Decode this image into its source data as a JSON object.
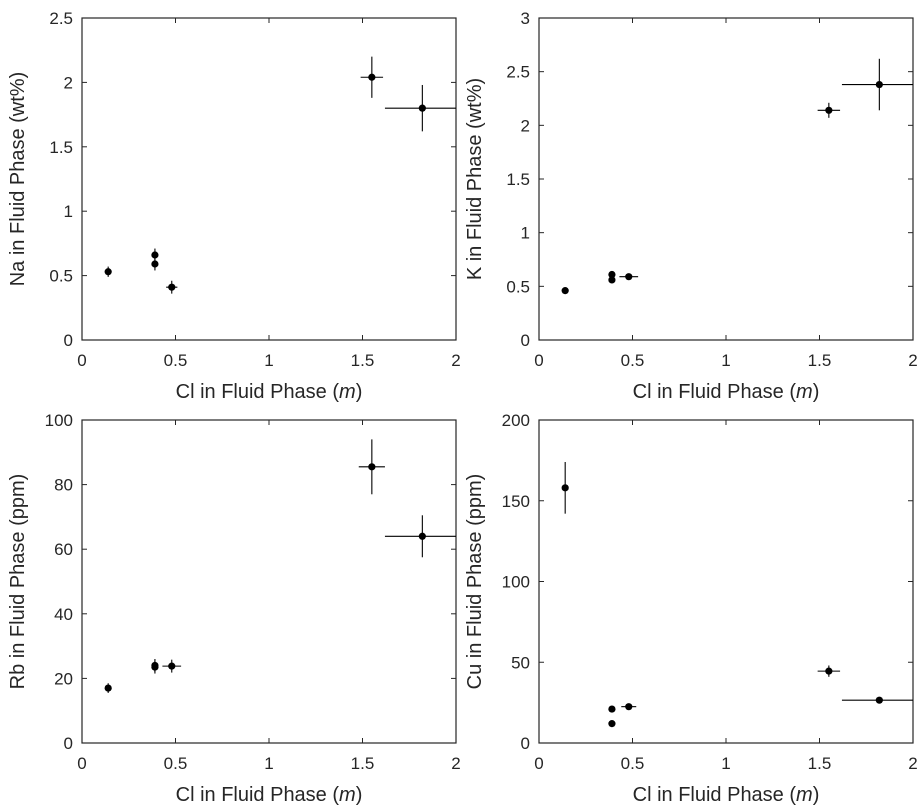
{
  "chart_data": [
    {
      "type": "scatter",
      "xlabel": "Cl in Fluid Phase",
      "xlabel_unit": "m",
      "ylabel": "Na in Fluid Phase (wt%)",
      "xlim": [
        0,
        2
      ],
      "ylim": [
        0,
        2.5
      ],
      "xticks": [
        0,
        0.5,
        1,
        1.5,
        2
      ],
      "xtick_labels": [
        "0",
        "0.5",
        "1",
        "1.5",
        "2"
      ],
      "yticks": [
        0,
        0.5,
        1,
        1.5,
        2,
        2.5
      ],
      "ytick_labels": [
        "0",
        "0.5",
        "1",
        "1.5",
        "2",
        "2.5"
      ],
      "points": [
        {
          "x": 0.14,
          "y": 0.53,
          "xerr": 0,
          "yerr": 0.04
        },
        {
          "x": 0.39,
          "y": 0.59,
          "xerr": 0,
          "yerr": 0.05
        },
        {
          "x": 0.39,
          "y": 0.66,
          "xerr": 0,
          "yerr": 0.05
        },
        {
          "x": 0.48,
          "y": 0.41,
          "xerr": 0.03,
          "yerr": 0.05
        },
        {
          "x": 1.55,
          "y": 2.04,
          "xerr": 0.06,
          "yerr": 0.16
        },
        {
          "x": 1.82,
          "y": 1.8,
          "xerr": 0.2,
          "yerr": 0.18
        }
      ]
    },
    {
      "type": "scatter",
      "xlabel": "Cl in Fluid Phase",
      "xlabel_unit": "m",
      "ylabel": "K in Fluid Phase (wt%)",
      "xlim": [
        0,
        2
      ],
      "ylim": [
        0,
        3
      ],
      "xticks": [
        0,
        0.5,
        1,
        1.5,
        2
      ],
      "xtick_labels": [
        "0",
        "0.5",
        "1",
        "1.5",
        "2"
      ],
      "yticks": [
        0,
        0.5,
        1,
        1.5,
        2,
        2.5,
        3
      ],
      "ytick_labels": [
        "0",
        "0.5",
        "1",
        "1.5",
        "2",
        "2.5",
        "3"
      ],
      "points": [
        {
          "x": 0.14,
          "y": 0.46,
          "xerr": 0,
          "yerr": 0
        },
        {
          "x": 0.39,
          "y": 0.56,
          "xerr": 0,
          "yerr": 0
        },
        {
          "x": 0.39,
          "y": 0.61,
          "xerr": 0,
          "yerr": 0
        },
        {
          "x": 0.48,
          "y": 0.59,
          "xerr": 0.05,
          "yerr": 0
        },
        {
          "x": 1.55,
          "y": 2.14,
          "xerr": 0.06,
          "yerr": 0.07
        },
        {
          "x": 1.82,
          "y": 2.38,
          "xerr": 0.2,
          "yerr": 0.24
        }
      ]
    },
    {
      "type": "scatter",
      "xlabel": "Cl in Fluid Phase",
      "xlabel_unit": "m",
      "ylabel": "Rb in Fluid Phase (ppm)",
      "xlim": [
        0,
        2
      ],
      "ylim": [
        0,
        100
      ],
      "xticks": [
        0,
        0.5,
        1,
        1.5,
        2
      ],
      "xtick_labels": [
        "0",
        "0.5",
        "1",
        "1.5",
        "2"
      ],
      "yticks": [
        0,
        20,
        40,
        60,
        80,
        100
      ],
      "ytick_labels": [
        "0",
        "20",
        "40",
        "60",
        "80",
        "100"
      ],
      "points": [
        {
          "x": 0.14,
          "y": 17.0,
          "xerr": 0,
          "yerr": 1.5
        },
        {
          "x": 0.39,
          "y": 23.5,
          "xerr": 0,
          "yerr": 2
        },
        {
          "x": 0.39,
          "y": 24.0,
          "xerr": 0,
          "yerr": 2
        },
        {
          "x": 0.48,
          "y": 23.8,
          "xerr": 0.05,
          "yerr": 2
        },
        {
          "x": 1.55,
          "y": 85.5,
          "xerr": 0.07,
          "yerr": 8.5
        },
        {
          "x": 1.82,
          "y": 64.0,
          "xerr": 0.2,
          "yerr": 6.5
        }
      ]
    },
    {
      "type": "scatter",
      "xlabel": "Cl in Fluid Phase",
      "xlabel_unit": "m",
      "ylabel": "Cu in Fluid Phase (ppm)",
      "xlim": [
        0,
        2
      ],
      "ylim": [
        0,
        200
      ],
      "xticks": [
        0,
        0.5,
        1,
        1.5,
        2
      ],
      "xtick_labels": [
        "0",
        "0.5",
        "1",
        "1.5",
        "2"
      ],
      "yticks": [
        0,
        50,
        100,
        150,
        200
      ],
      "ytick_labels": [
        "0",
        "50",
        "100",
        "150",
        "200"
      ],
      "points": [
        {
          "x": 0.14,
          "y": 158.0,
          "xerr": 0,
          "yerr": 16
        },
        {
          "x": 0.39,
          "y": 12.0,
          "xerr": 0,
          "yerr": 0
        },
        {
          "x": 0.39,
          "y": 21.0,
          "xerr": 0,
          "yerr": 0
        },
        {
          "x": 0.48,
          "y": 22.5,
          "xerr": 0.04,
          "yerr": 0
        },
        {
          "x": 1.55,
          "y": 44.5,
          "xerr": 0.06,
          "yerr": 3.5
        },
        {
          "x": 1.82,
          "y": 26.5,
          "xerr": 0.2,
          "yerr": 0
        }
      ]
    }
  ]
}
